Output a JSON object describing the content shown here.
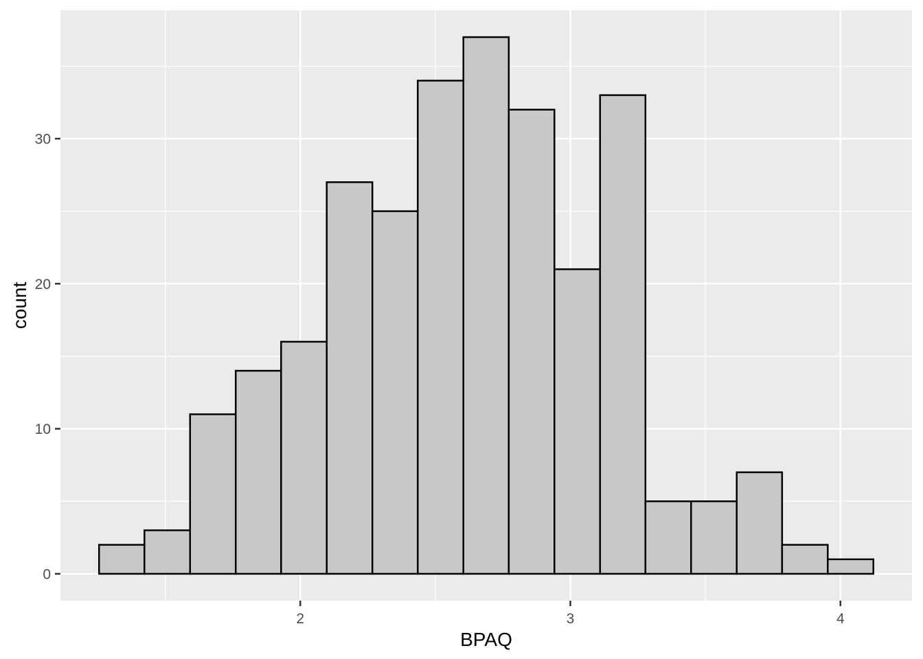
{
  "chart_data": {
    "type": "bar",
    "subtype": "histogram",
    "title": "",
    "xlabel": "BPAQ",
    "ylabel": "count",
    "bin_edges": [
      1.255,
      1.423,
      1.592,
      1.761,
      1.929,
      2.098,
      2.267,
      2.435,
      2.604,
      2.772,
      2.941,
      3.11,
      3.278,
      3.447,
      3.616,
      3.784,
      3.953,
      4.122
    ],
    "binwidth": 0.169,
    "counts": [
      2,
      3,
      11,
      14,
      16,
      27,
      25,
      34,
      37,
      32,
      21,
      33,
      5,
      5,
      7,
      2,
      1
    ],
    "total_count": 275,
    "x_ticks": [
      2,
      3,
      4
    ],
    "x_tick_labels": [
      "2",
      "3",
      "4"
    ],
    "x_minor_ticks": [
      1.5,
      2.5,
      3.5
    ],
    "y_ticks": [
      0,
      10,
      20,
      30
    ],
    "y_tick_labels": [
      "0",
      "10",
      "20",
      "30"
    ],
    "y_minor_ticks": [
      5,
      15,
      25,
      35
    ],
    "xlim": [
      1.112,
      4.265
    ],
    "ylim": [
      -1.85,
      38.85
    ],
    "grid": "white major and minor gridlines on grey panel",
    "legend_position": "none",
    "colors": {
      "figure_bg": "#FFFFFF",
      "panel_bg": "#EBEBEB",
      "grid_major": "#FFFFFF",
      "grid_minor": "#FFFFFF",
      "bar_fill": "#C8C8C8",
      "bar_stroke": "#000000",
      "tick_mark": "#333333",
      "tick_label": "#4D4D4D",
      "axis_title": "#000000"
    }
  }
}
